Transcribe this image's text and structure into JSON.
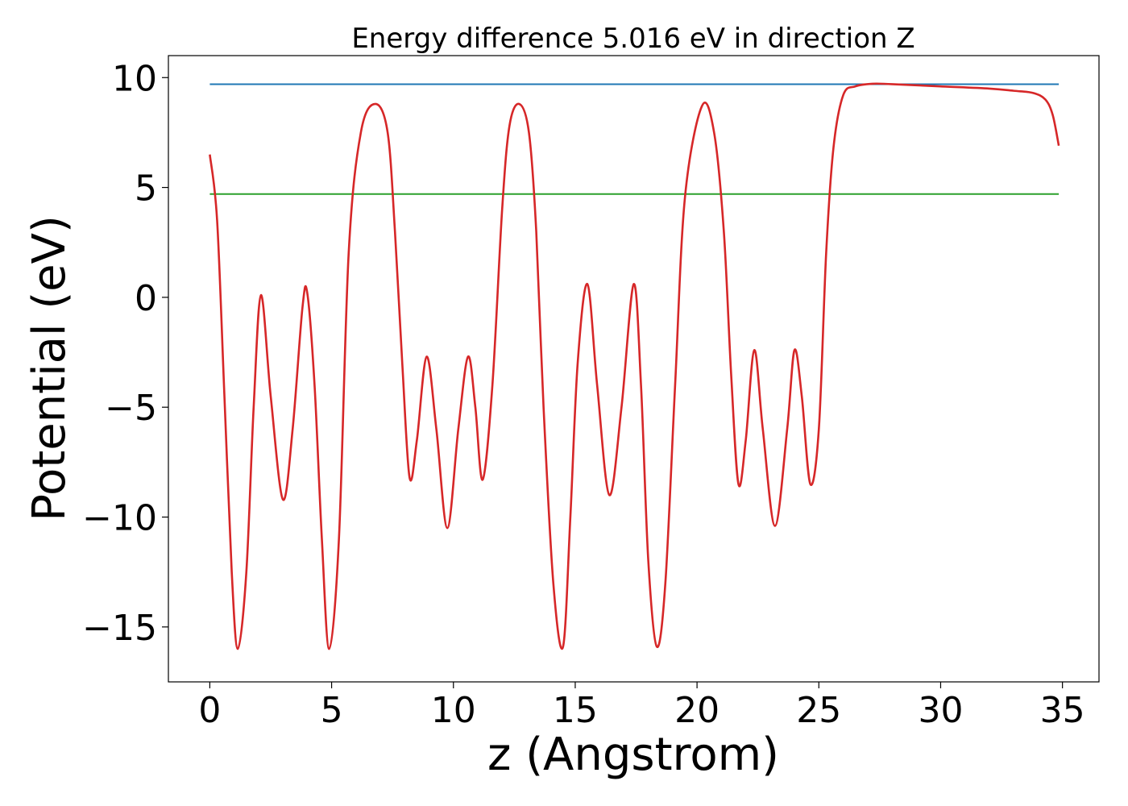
{
  "chart_data": {
    "type": "line",
    "title": "Energy difference 5.016 eV in direction Z",
    "xlabel": "z (Angstrom)",
    "ylabel": "Potential (eV)",
    "xlim": [
      -1.7,
      36.5
    ],
    "ylim": [
      -17.5,
      11.0
    ],
    "x_ticks": [
      0,
      5,
      10,
      15,
      20,
      25,
      30,
      35
    ],
    "x_tick_labels": [
      "0",
      "5",
      "10",
      "15",
      "20",
      "25",
      "30",
      "35"
    ],
    "y_ticks": [
      10,
      5,
      0,
      -5,
      -10,
      -15
    ],
    "y_tick_labels": [
      "10",
      "5",
      "0",
      "−5",
      "−10",
      "−15"
    ],
    "grid": false,
    "legend": "none",
    "series": [
      {
        "color": "#d62728",
        "x": [
          0,
          0.3,
          0.6,
          0.9,
          1.15,
          1.5,
          1.8,
          2.1,
          2.5,
          3.0,
          3.4,
          3.8,
          4.0,
          4.3,
          4.6,
          4.9,
          5.3,
          5.7,
          6.2,
          6.8,
          7.3,
          7.6,
          7.9,
          8.2,
          8.5,
          8.9,
          9.3,
          9.75,
          10.2,
          10.6,
          10.9,
          11.2,
          11.6,
          12.0,
          12.3,
          12.7,
          13.1,
          13.4,
          13.7,
          14.1,
          14.5,
          14.8,
          15.1,
          15.5,
          15.9,
          16.4,
          16.9,
          17.4,
          17.7,
          18.0,
          18.35,
          18.7,
          19.1,
          19.5,
          20.2,
          20.7,
          21.1,
          21.4,
          21.7,
          22.0,
          22.35,
          22.7,
          23.2,
          23.7,
          24.0,
          24.3,
          24.65,
          25.0,
          25.3,
          25.6,
          26.0,
          26.5,
          27.2,
          28.0,
          30.0,
          32.0,
          33.0,
          33.8,
          34.3,
          34.6,
          34.85
        ],
        "y": [
          6.5,
          3.5,
          -4.5,
          -12.5,
          -16.0,
          -12.5,
          -5.0,
          0.1,
          -4.5,
          -9.2,
          -6.0,
          -0.5,
          0.2,
          -4.0,
          -11.0,
          -16.0,
          -11.0,
          2.0,
          7.5,
          8.8,
          7.5,
          3.0,
          -3.0,
          -8.2,
          -6.5,
          -2.7,
          -6.0,
          -10.5,
          -6.0,
          -2.7,
          -5.0,
          -8.3,
          -4.0,
          4.0,
          7.8,
          8.8,
          7.5,
          3.0,
          -5.0,
          -13.0,
          -15.9,
          -10.0,
          -3.0,
          0.6,
          -4.0,
          -9.0,
          -5.0,
          0.6,
          -4.0,
          -12.0,
          -15.9,
          -13.0,
          -4.0,
          4.5,
          8.7,
          7.5,
          3.0,
          -3.5,
          -8.5,
          -6.5,
          -2.4,
          -6.0,
          -10.4,
          -6.0,
          -2.4,
          -4.5,
          -8.5,
          -6.0,
          2.0,
          6.8,
          9.2,
          9.6,
          9.72,
          9.7,
          9.6,
          9.5,
          9.4,
          9.3,
          9.0,
          8.3,
          6.9
        ]
      },
      {
        "color": "#1f77b4",
        "x": [
          0,
          34.85
        ],
        "y": [
          9.7,
          9.7
        ]
      },
      {
        "color": "#2ca02c",
        "x": [
          0,
          34.85
        ],
        "y": [
          4.7,
          4.7
        ]
      }
    ]
  }
}
